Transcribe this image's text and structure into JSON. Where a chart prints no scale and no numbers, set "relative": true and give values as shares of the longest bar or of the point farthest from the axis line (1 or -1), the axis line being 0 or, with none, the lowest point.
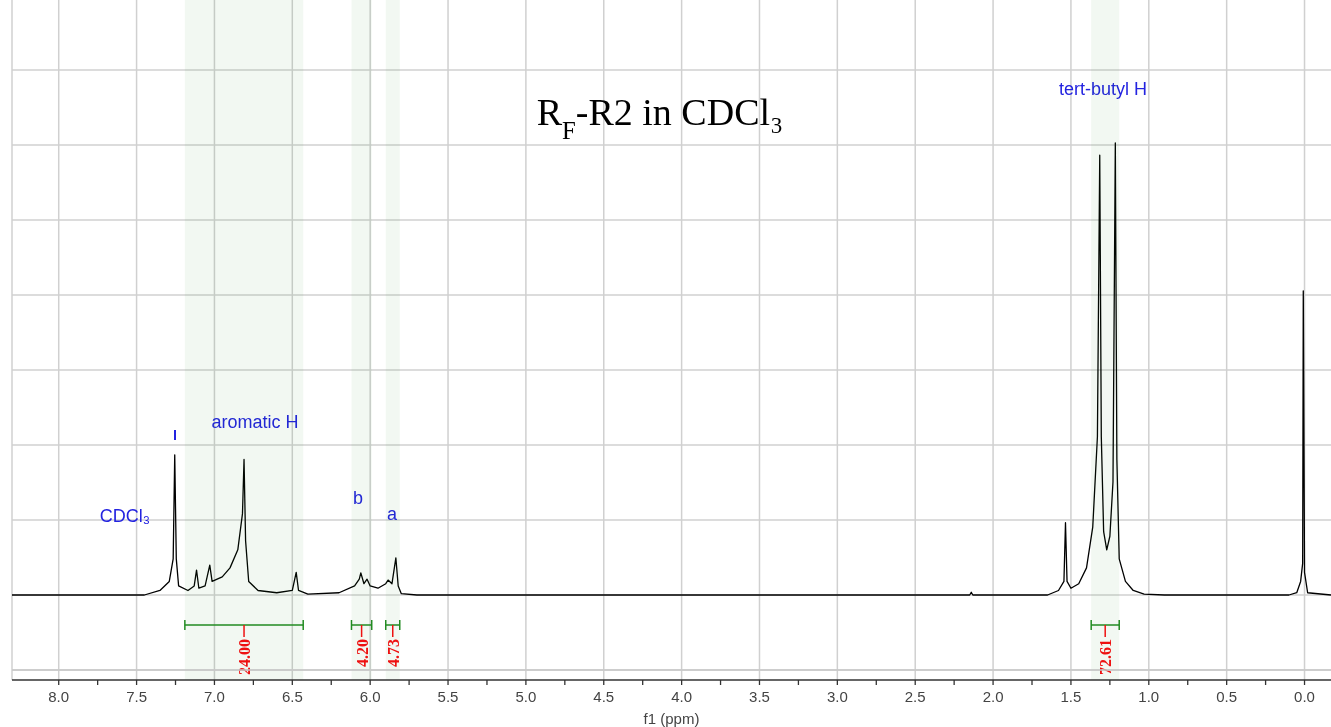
{
  "chart_data": {
    "type": "line",
    "title": "R$_{F}$-R2 in CDCl₃",
    "xlabel": "f1 (ppm)",
    "relative": true,
    "grid": true,
    "xlim": [
      8.3,
      -0.17
    ],
    "xticks": [
      {
        "value": 8,
        "label": "8.0"
      },
      {
        "value": 7.5,
        "label": "7.5"
      },
      {
        "value": 7,
        "label": "7.0"
      },
      {
        "value": 6.5,
        "label": "6.5"
      },
      {
        "value": 6,
        "label": "6.0"
      },
      {
        "value": 5.5,
        "label": "5.5"
      },
      {
        "value": 5,
        "label": "5.0"
      },
      {
        "value": 4.5,
        "label": "4.5"
      },
      {
        "value": 4,
        "label": "4.0"
      },
      {
        "value": 3.5,
        "label": "3.5"
      },
      {
        "value": 3,
        "label": "3.0"
      },
      {
        "value": 2.5,
        "label": "2.5"
      },
      {
        "value": 2,
        "label": "2.0"
      },
      {
        "value": 1.5,
        "label": "1.5"
      },
      {
        "value": 1,
        "label": "1.0"
      },
      {
        "value": 0.5,
        "label": "0.5"
      },
      {
        "value": 0,
        "label": "0.0"
      }
    ],
    "x": [
      8.3,
      7.45,
      7.35,
      7.29,
      7.265,
      7.255,
      7.245,
      7.23,
      7.17,
      7.13,
      7.115,
      7.1,
      7.06,
      7.03,
      7.015,
      6.95,
      6.9,
      6.85,
      6.82,
      6.81,
      6.8,
      6.78,
      6.72,
      6.6,
      6.5,
      6.475,
      6.46,
      6.4,
      6.2,
      6.1,
      6.07,
      6.06,
      6.04,
      6.02,
      6.0,
      5.95,
      5.9,
      5.885,
      5.86,
      5.835,
      5.82,
      5.8,
      5.7,
      2.15,
      2.14,
      2.13,
      1.65,
      1.58,
      1.545,
      1.535,
      1.525,
      1.5,
      1.45,
      1.4,
      1.36,
      1.33,
      1.315,
      1.305,
      1.29,
      1.27,
      1.25,
      1.23,
      1.215,
      1.205,
      1.19,
      1.15,
      1.1,
      1.03,
      0.9,
      0.1,
      0.05,
      0.025,
      0.012,
      0.008,
      0.0,
      -0.02,
      -0.17
    ],
    "series": [
      {
        "color": "#000000",
        "values": [
          0,
          0,
          0.01,
          0.03,
          0.08,
          0.31,
          0.08,
          0.02,
          0.01,
          0.02,
          0.055,
          0.015,
          0.02,
          0.066,
          0.03,
          0.04,
          0.06,
          0.1,
          0.18,
          0.3,
          0.12,
          0.03,
          0.01,
          0.005,
          0.01,
          0.05,
          0.01,
          0.002,
          0.005,
          0.02,
          0.035,
          0.049,
          0.025,
          0.035,
          0.02,
          0.015,
          0.025,
          0.033,
          0.025,
          0.082,
          0.02,
          0.003,
          0,
          0,
          0.006,
          0,
          0,
          0.01,
          0.03,
          0.16,
          0.03,
          0.015,
          0.025,
          0.06,
          0.15,
          0.35,
          0.973,
          0.35,
          0.14,
          0.1,
          0.13,
          0.25,
          1,
          0.3,
          0.08,
          0.03,
          0.01,
          0.002,
          0,
          0,
          0.005,
          0.03,
          0.07,
          0.673,
          0.05,
          0.005,
          0
        ]
      }
    ],
    "annotations": [
      "CDCl₃",
      "aromatic H",
      "b",
      "a",
      "tert-butyl H"
    ],
    "bands": [
      {
        "axis": "x",
        "from": 7.19,
        "to": 6.43,
        "label": "24.00",
        "color": "#228b22"
      },
      {
        "axis": "x",
        "from": 6.12,
        "to": 5.99,
        "label": "4.20",
        "color": "#228b22"
      },
      {
        "axis": "x",
        "from": 5.9,
        "to": 5.81,
        "label": "4.73",
        "color": "#228b22"
      },
      {
        "axis": "x",
        "from": 1.37,
        "to": 1.19,
        "label": "72.61",
        "color": "#228b22"
      }
    ]
  }
}
